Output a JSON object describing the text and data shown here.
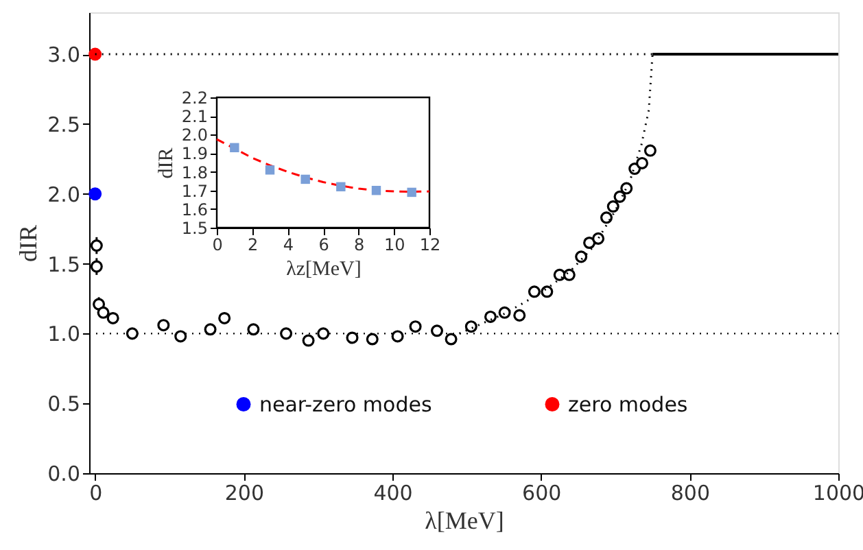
{
  "chart_data": [
    {
      "type": "scatter",
      "xlabel": "λ[MeV]",
      "ylabel": "dIR",
      "xlim": [
        -8,
        1000
      ],
      "ylim": [
        0,
        3.3
      ],
      "xticks": [
        0,
        200,
        400,
        600,
        800,
        1000
      ],
      "yticks": [
        {
          "value": 0,
          "label": "0.0"
        },
        0.5,
        {
          "value": 1,
          "label": "1.0"
        },
        1.5,
        {
          "value": 2,
          "label": "2.0"
        },
        2.5,
        {
          "value": 3,
          "label": "3.0"
        }
      ],
      "grid": false,
      "legend": "bottom",
      "ref_lines": [
        {
          "axis": "y",
          "value": 1,
          "line_style": "dotted",
          "color": "#000000"
        }
      ],
      "series": [
        {
          "marker": "circle",
          "color": "#000000",
          "x": [
            2,
            2,
            5,
            11,
            24,
            50,
            92,
            115,
            155,
            174,
            213,
            257,
            287,
            307,
            346,
            373,
            407,
            431,
            460,
            479,
            506,
            532,
            551,
            571,
            591,
            608,
            625,
            638,
            654,
            665,
            677,
            688,
            697,
            706,
            715,
            726,
            736,
            747
          ],
          "values": [
            1.63,
            1.48,
            1.21,
            1.15,
            1.11,
            1.0,
            1.06,
            0.98,
            1.03,
            1.11,
            1.03,
            1.0,
            0.95,
            1.0,
            0.97,
            0.96,
            0.98,
            1.05,
            1.02,
            0.96,
            1.05,
            1.12,
            1.15,
            1.13,
            1.3,
            1.3,
            1.42,
            1.42,
            1.55,
            1.65,
            1.68,
            1.83,
            1.91,
            1.98,
            2.04,
            2.18,
            2.22,
            2.31
          ],
          "errors": [
            0.06,
            0.06,
            0.05,
            0.04,
            0.04,
            0.04,
            0.04,
            0.04,
            0.04,
            0.04,
            0.04,
            0.04,
            0.04,
            0.04,
            0.04,
            0.04,
            0.04,
            0.04,
            0.04,
            0.04,
            0.04,
            0.04,
            0.04,
            0.04,
            0.04,
            0.04,
            0.04,
            0.04,
            0.03,
            0.03,
            0.03,
            0.03,
            0.03,
            0.03,
            0.03,
            0.03,
            0.03,
            0.03
          ]
        },
        {
          "marker": "circle",
          "name": "near-zero modes",
          "color": "#0000ff",
          "x": [
            0
          ],
          "values": [
            2.0
          ]
        },
        {
          "marker": "circle",
          "name": "zero modes",
          "color": "#ff0000",
          "x": [
            0
          ],
          "values": [
            3.0
          ]
        },
        {
          "type": "line",
          "line_style": "dotted",
          "color": "#000000",
          "x": [
            490,
            520,
            550,
            580,
            610,
            640,
            670,
            700,
            720,
            735,
            745,
            750
          ],
          "values": [
            1.0,
            1.07,
            1.14,
            1.23,
            1.33,
            1.45,
            1.62,
            1.88,
            2.1,
            2.35,
            2.6,
            3.0
          ]
        },
        {
          "type": "line",
          "line_style": "dotted",
          "color": "#000000",
          "x": [
            0,
            750
          ],
          "values": [
            3.0,
            3.0
          ]
        },
        {
          "type": "line",
          "line_style": "solid",
          "color": "#000000",
          "x": [
            750,
            1000
          ],
          "values": [
            3.0,
            3.0
          ]
        }
      ]
    },
    {
      "type": "scatter",
      "xlabel": "λz[MeV]",
      "ylabel": "dIR",
      "xlim": [
        0,
        12
      ],
      "ylim": [
        1.5,
        2.2
      ],
      "xticks": [
        0,
        2,
        4,
        6,
        8,
        10,
        12
      ],
      "yticks": [
        1.5,
        1.6,
        1.7,
        1.8,
        1.9,
        {
          "value": 2,
          "label": "2.0"
        },
        2.1,
        2.2
      ],
      "grid": false,
      "series": [
        {
          "type": "line",
          "line_style": "dashed",
          "color": "#ff0000",
          "x": [
            0,
            1,
            2,
            3,
            4,
            5,
            6,
            7,
            8,
            9,
            10,
            11,
            12
          ],
          "values": [
            1.975,
            1.925,
            1.875,
            1.835,
            1.8,
            1.77,
            1.745,
            1.725,
            1.71,
            1.7,
            1.695,
            1.693,
            1.695
          ]
        },
        {
          "marker": "square",
          "color": "#7a9fd8",
          "x": [
            1,
            3,
            5,
            7,
            9,
            11
          ],
          "values": [
            1.93,
            1.81,
            1.76,
            1.72,
            1.7,
            1.69
          ],
          "errors": [
            0.01,
            0.01,
            0.01,
            0.01,
            0.01,
            0.01
          ]
        }
      ]
    }
  ]
}
